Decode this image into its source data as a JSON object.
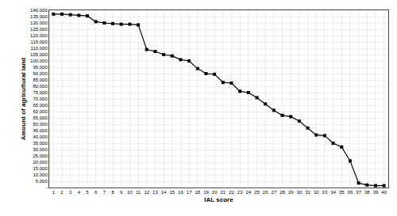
{
  "chart_data": {
    "type": "line",
    "x": [
      1,
      2,
      3,
      4,
      5,
      6,
      7,
      8,
      9,
      10,
      11,
      12,
      13,
      14,
      15,
      16,
      17,
      18,
      19,
      20,
      21,
      22,
      23,
      24,
      25,
      26,
      27,
      28,
      29,
      30,
      31,
      32,
      33,
      34,
      35,
      36,
      37,
      38,
      39,
      40
    ],
    "values": [
      137000,
      137000,
      136500,
      136000,
      135500,
      131000,
      130000,
      129500,
      129000,
      129000,
      128500,
      109000,
      107500,
      105000,
      104000,
      101000,
      100000,
      94000,
      90000,
      89500,
      83000,
      82500,
      76000,
      75000,
      71000,
      66000,
      61000,
      57000,
      56000,
      52500,
      47000,
      41500,
      41000,
      35000,
      32000,
      21000,
      3500,
      2000,
      1500,
      1500
    ],
    "color": "#000000",
    "marker": "square",
    "line_style": "solid",
    "xlabel": "IAL score",
    "ylabel": "Amount of agricultural land",
    "xlim": [
      0.5,
      40.5
    ],
    "xticks": [
      1,
      2,
      3,
      4,
      5,
      6,
      7,
      8,
      9,
      10,
      11,
      12,
      13,
      14,
      15,
      16,
      17,
      18,
      19,
      20,
      21,
      22,
      23,
      24,
      25,
      26,
      27,
      28,
      29,
      30,
      31,
      32,
      33,
      34,
      35,
      36,
      37,
      38,
      39,
      40
    ],
    "ylim": [
      0,
      140000
    ],
    "yticks": [
      {
        "value": 0,
        "label": "-"
      },
      {
        "value": 5000,
        "label": "5,000"
      },
      {
        "value": 10000,
        "label": "10,000"
      },
      {
        "value": 15000,
        "label": "15,000"
      },
      {
        "value": 20000,
        "label": "20,000"
      },
      {
        "value": 25000,
        "label": "25,000"
      },
      {
        "value": 30000,
        "label": "30,000"
      },
      {
        "value": 35000,
        "label": "35,000"
      },
      {
        "value": 40000,
        "label": "40,000"
      },
      {
        "value": 45000,
        "label": "45,000"
      },
      {
        "value": 50000,
        "label": "50,000"
      },
      {
        "value": 55000,
        "label": "55,000"
      },
      {
        "value": 60000,
        "label": "60,000"
      },
      {
        "value": 65000,
        "label": "65,000"
      },
      {
        "value": 70000,
        "label": "70,000"
      },
      {
        "value": 75000,
        "label": "75,000"
      },
      {
        "value": 80000,
        "label": "80,000"
      },
      {
        "value": 85000,
        "label": "85,000"
      },
      {
        "value": 90000,
        "label": "90,000"
      },
      {
        "value": 95000,
        "label": "95,000"
      },
      {
        "value": 100000,
        "label": "100,000"
      },
      {
        "value": 105000,
        "label": "105,000"
      },
      {
        "value": 110000,
        "label": "110,000"
      },
      {
        "value": 115000,
        "label": "115,000"
      },
      {
        "value": 120000,
        "label": "120,000"
      },
      {
        "value": 125000,
        "label": "125,000"
      },
      {
        "value": 130000,
        "label": "130,000"
      },
      {
        "value": 135000,
        "label": "135,000"
      },
      {
        "value": 140000,
        "label": "140,000"
      }
    ],
    "grid": true
  }
}
